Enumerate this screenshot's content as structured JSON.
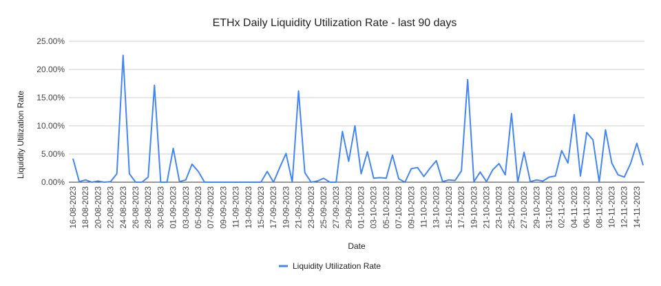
{
  "chart_data": {
    "type": "line",
    "title": "ETHx Daily Liquidity Utilization Rate - last 90 days",
    "xlabel": "Date",
    "ylabel": "Liquidity Utilization Rate",
    "ylim": [
      0,
      25
    ],
    "yticks": [
      "0.00%",
      "5.00%",
      "10.00%",
      "15.00%",
      "20.00%",
      "25.00%"
    ],
    "ytick_values": [
      0,
      5,
      10,
      15,
      20,
      25
    ],
    "grid": true,
    "legend_position": "bottom",
    "series": [
      {
        "name": "Liquidity Utilization Rate",
        "color": "#4285f4",
        "values": [
          4.2,
          0.1,
          0.4,
          0,
          0.2,
          0,
          0.1,
          1.5,
          22.5,
          1.5,
          0,
          0,
          0.9,
          17.2,
          0,
          0,
          6.0,
          0.1,
          0.4,
          3.2,
          1.9,
          0,
          0,
          0,
          0,
          0,
          0,
          0,
          0,
          0,
          0,
          1.9,
          0,
          2.6,
          5.1,
          0,
          16.2,
          1.7,
          0,
          0.2,
          0.7,
          0,
          0,
          9.0,
          3.7,
          10.0,
          1.5,
          5.4,
          0.7,
          0.8,
          0.7,
          4.8,
          0.6,
          0,
          2.4,
          2.6,
          1.0,
          2.5,
          3.8,
          0.1,
          0.4,
          0.3,
          2.0,
          18.2,
          0.1,
          1.8,
          0.1,
          2.2,
          3.3,
          1.3,
          12.2,
          0,
          5.3,
          0.1,
          0.4,
          0.2,
          0.9,
          1.1,
          5.6,
          3.4,
          12.0,
          1.1,
          8.8,
          7.5,
          0,
          9.3,
          3.4,
          1.3,
          0.9,
          3.3,
          6.9,
          3.0
        ]
      }
    ],
    "x": [
      "16-08-2023",
      "17-08-2023",
      "18-08-2023",
      "19-08-2023",
      "20-08-2023",
      "21-08-2023",
      "22-08-2023",
      "23-08-2023",
      "24-08-2023",
      "25-08-2023",
      "26-08-2023",
      "27-08-2023",
      "28-08-2023",
      "29-08-2023",
      "30-08-2023",
      "31-08-2023",
      "01-09-2023",
      "02-09-2023",
      "03-09-2023",
      "04-09-2023",
      "05-09-2023",
      "06-09-2023",
      "07-09-2023",
      "08-09-2023",
      "09-09-2023",
      "10-09-2023",
      "11-09-2023",
      "12-09-2023",
      "13-09-2023",
      "14-09-2023",
      "15-09-2023",
      "16-09-2023",
      "17-09-2023",
      "18-09-2023",
      "19-09-2023",
      "20-09-2023",
      "21-09-2023",
      "22-09-2023",
      "23-09-2023",
      "24-09-2023",
      "25-09-2023",
      "26-09-2023",
      "27-09-2023",
      "28-09-2023",
      "29-09-2023",
      "30-09-2023",
      "01-10-2023",
      "02-10-2023",
      "03-10-2023",
      "04-10-2023",
      "05-10-2023",
      "06-10-2023",
      "07-10-2023",
      "08-10-2023",
      "09-10-2023",
      "10-10-2023",
      "11-10-2023",
      "12-10-2023",
      "13-10-2023",
      "14-10-2023",
      "15-10-2023",
      "16-10-2023",
      "17-10-2023",
      "18-10-2023",
      "19-10-2023",
      "20-10-2023",
      "21-10-2023",
      "22-10-2023",
      "23-10-2023",
      "24-10-2023",
      "25-10-2023",
      "26-10-2023",
      "27-10-2023",
      "28-10-2023",
      "29-10-2023",
      "30-10-2023",
      "31-10-2023",
      "01-11-2023",
      "02-11-2023",
      "03-11-2023",
      "04-11-2023",
      "05-11-2023",
      "06-11-2023",
      "07-11-2023",
      "08-11-2023",
      "09-11-2023",
      "10-11-2023",
      "11-11-2023",
      "12-11-2023",
      "13-11-2023",
      "14-11-2023",
      "15-11-2023"
    ],
    "x_tick_every": 2
  }
}
